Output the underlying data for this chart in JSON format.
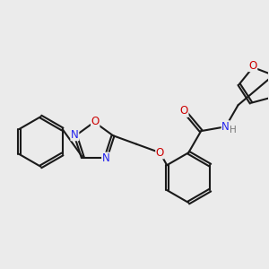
{
  "bg_color": "#ebebeb",
  "bond_color": "#1a1a1a",
  "bond_width": 1.5,
  "atom_colors": {
    "N": "#2222ee",
    "O": "#cc0000",
    "H": "#777777",
    "C": "#1a1a1a"
  },
  "font_size": 8.5,
  "font_size_h": 7.5,
  "dbo": 0.018
}
